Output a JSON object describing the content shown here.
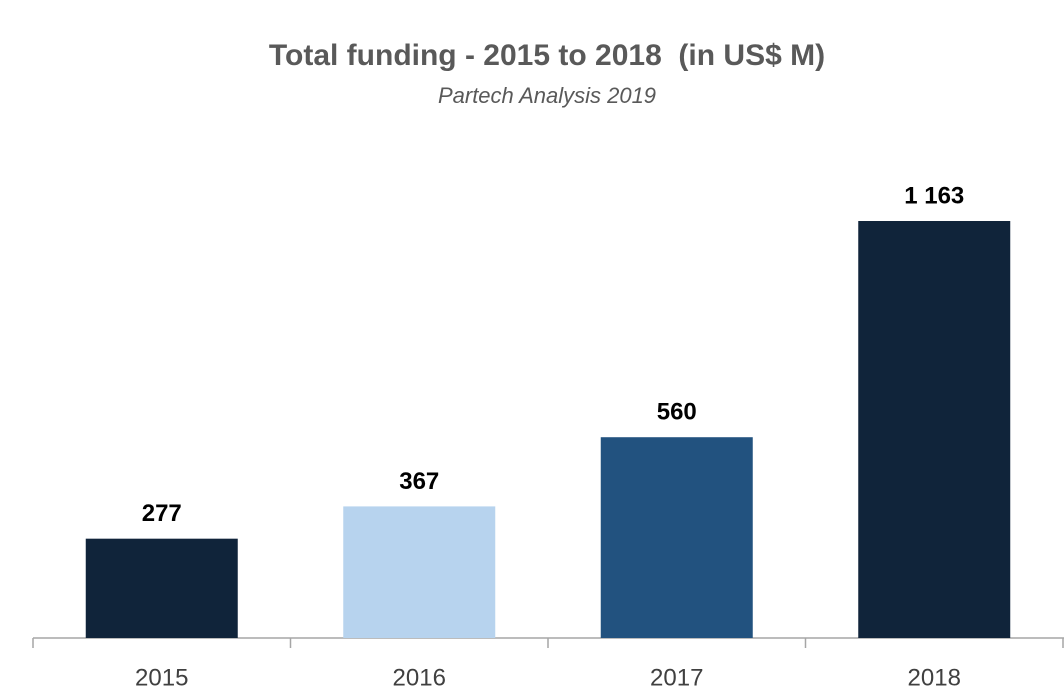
{
  "chart_data": {
    "type": "bar",
    "title": "Total funding - 2015 to 2018  (in US$ M)",
    "subtitle": "Partech Analysis 2019",
    "categories": [
      "2015",
      "2016",
      "2017",
      "2018"
    ],
    "values": [
      277,
      367,
      560,
      1163
    ],
    "value_labels": [
      "277",
      "367",
      "560",
      "1 163"
    ],
    "colors": [
      "#10243a",
      "#b7d3ee",
      "#22527f",
      "#10243a"
    ]
  }
}
